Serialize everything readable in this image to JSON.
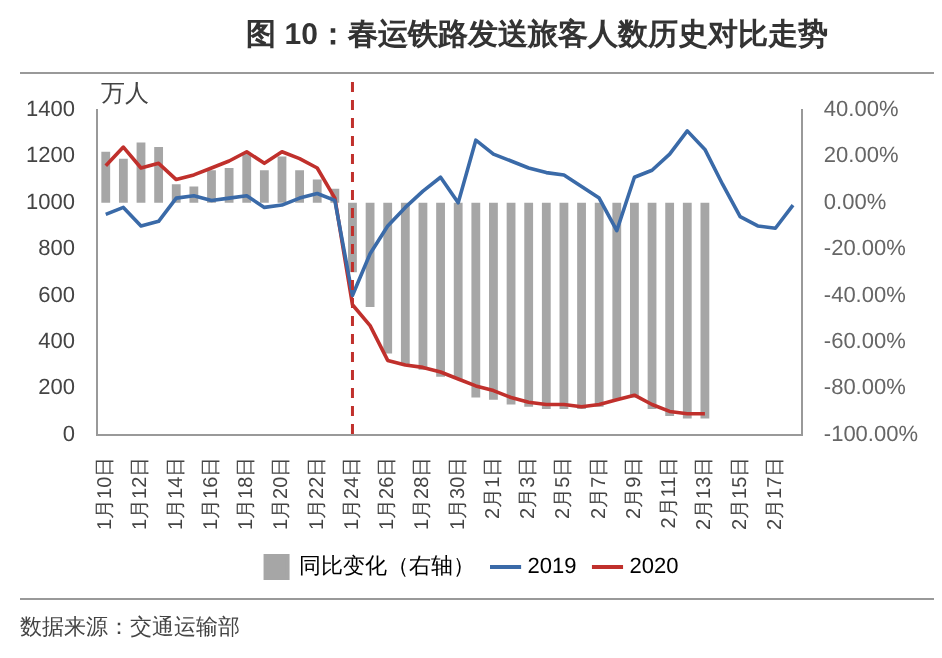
{
  "chart_data": {
    "type": "line",
    "title": "图 10：春运铁路发送旅客人数历史对比走势",
    "ylabel": "万人",
    "annotations": [
      "数据来源：交通运输部"
    ],
    "categories": [
      "1月10日",
      null,
      "1月12日",
      null,
      "1月14日",
      null,
      "1月16日",
      null,
      "1月18日",
      null,
      "1月20日",
      null,
      "1月22日",
      null,
      "1月24日",
      null,
      "1月26日",
      null,
      "1月28日",
      null,
      "1月30日",
      null,
      "2月1日",
      null,
      "2月3日",
      null,
      "2月5日",
      null,
      "2月7日",
      null,
      "2月9日",
      null,
      "2月11日",
      null,
      "2月13日",
      null,
      "2月15日",
      null,
      "2月17日",
      null
    ],
    "series": [
      {
        "name": "同比变化（右轴）",
        "type": "bar",
        "axis": "y2",
        "color": "#a6a6a6",
        "values": [
          22,
          19,
          26,
          24,
          8,
          7,
          14,
          15,
          21,
          14,
          20,
          14,
          10,
          6,
          -30,
          -45,
          -65,
          -70,
          -72,
          -75,
          -76,
          -84,
          -85,
          -87,
          -88,
          -89,
          -89,
          -89,
          -88,
          -85,
          -84,
          -89,
          -92,
          -93,
          -93,
          null,
          null,
          null,
          null,
          null
        ]
      },
      {
        "name": "2019",
        "color": "#3a6aa8",
        "values": [
          950,
          980,
          900,
          920,
          1020,
          1030,
          1010,
          1020,
          1030,
          980,
          990,
          1020,
          1040,
          1010,
          600,
          780,
          900,
          980,
          1050,
          1110,
          1000,
          1270,
          1210,
          1180,
          1150,
          1130,
          1120,
          1070,
          1020,
          880,
          1110,
          1140,
          1210,
          1310,
          1230,
          1080,
          940,
          900,
          890,
          990
        ]
      },
      {
        "name": "2020",
        "color": "#c0302c",
        "values": [
          1160,
          1240,
          1150,
          1170,
          1100,
          1120,
          1150,
          1180,
          1220,
          1170,
          1220,
          1190,
          1150,
          1020,
          560,
          470,
          320,
          300,
          290,
          270,
          240,
          210,
          190,
          160,
          140,
          130,
          130,
          120,
          130,
          150,
          170,
          130,
          100,
          90,
          90,
          null,
          null,
          null,
          null,
          null
        ]
      }
    ],
    "ylim": [
      0,
      1400
    ],
    "yticks": [
      0,
      200,
      400,
      600,
      800,
      1000,
      1200,
      1400
    ],
    "y2lim": [
      -100,
      40
    ],
    "y2ticks": [
      {
        "value": -100,
        "label": "-100.00%"
      },
      {
        "value": -80,
        "label": "-80.00%"
      },
      {
        "value": -60,
        "label": "-60.00%"
      },
      {
        "value": -40,
        "label": "-40.00%"
      },
      {
        "value": -20,
        "label": "-20.00%"
      },
      {
        "value": 0,
        "label": "0.00%"
      },
      {
        "value": 20,
        "label": "20.00%"
      },
      {
        "value": 40,
        "label": "40.00%"
      }
    ],
    "ref_lines": [
      {
        "axis": "x",
        "value": "1月24日",
        "color": "#c0302c",
        "line_style": "dashed"
      }
    ],
    "legend": "bottom"
  }
}
